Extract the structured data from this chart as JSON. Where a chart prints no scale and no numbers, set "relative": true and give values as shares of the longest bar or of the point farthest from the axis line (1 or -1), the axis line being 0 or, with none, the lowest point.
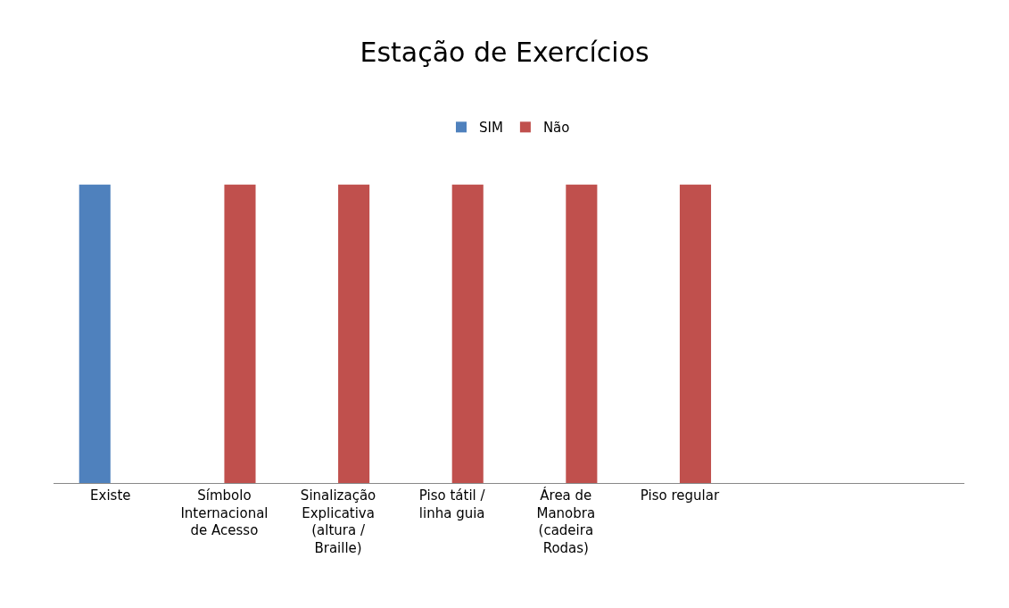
{
  "chart_data": {
    "type": "bar",
    "title": "Estação de Exercícios",
    "relative": true,
    "legend": "top",
    "categories": [
      "Existe",
      "Símbolo Internacional de Acesso",
      "Sinalização Explicativa (altura / Braille)",
      "Piso tátil / linha guia",
      "Área de Manobra (cadeira Rodas)",
      "Piso regular",
      null,
      null
    ],
    "series": [
      {
        "name": "SIM",
        "color": "#4f81bd",
        "values": [
          1,
          null,
          null,
          null,
          null,
          null,
          null,
          null
        ]
      },
      {
        "name": "Não",
        "color": "#c0504d",
        "values": [
          0,
          1,
          1,
          1,
          1,
          1,
          null,
          null
        ]
      }
    ]
  }
}
